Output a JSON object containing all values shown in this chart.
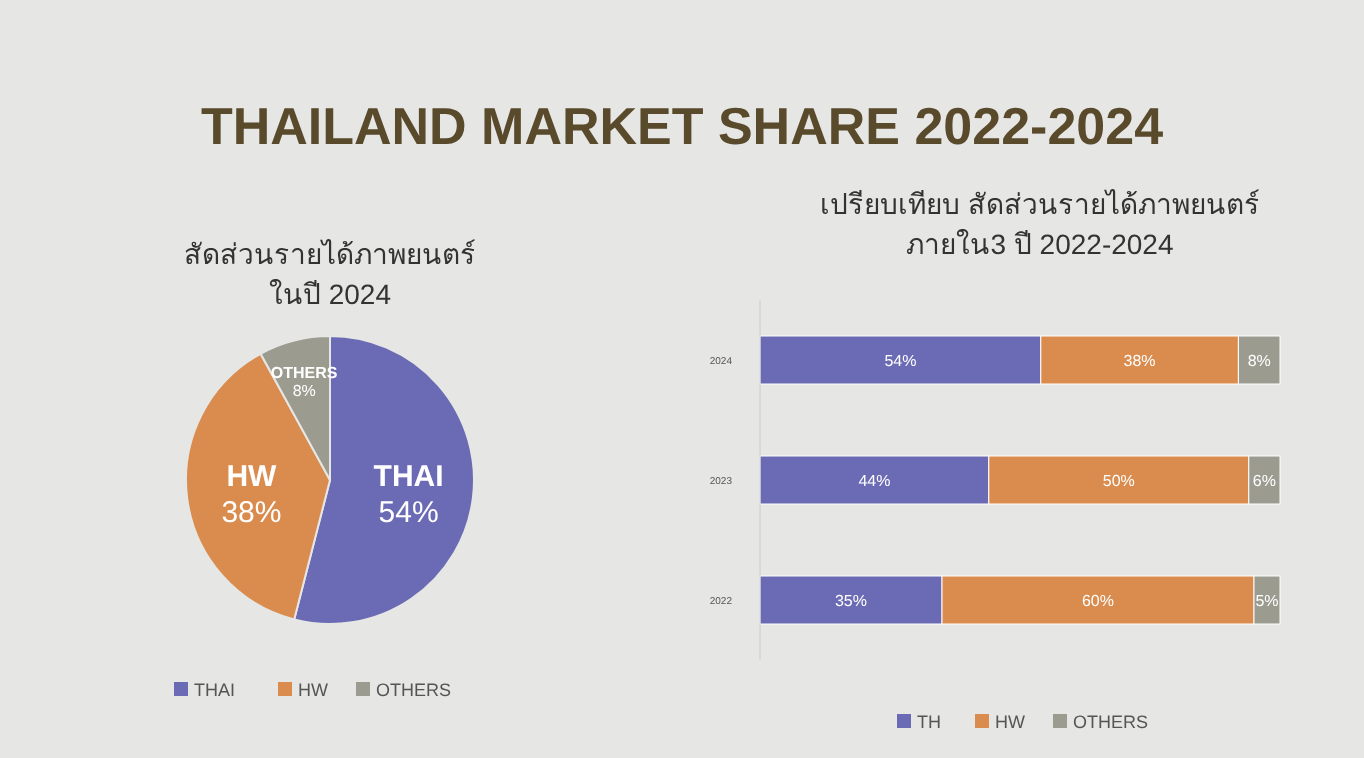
{
  "chart_data": [
    {
      "type": "other",
      "title": "THAILAND MARKET SHARE 2022-2024"
    },
    {
      "type": "pie",
      "title": "สัดส่วนรายได้ภาพยนตร์\nในปี 2024",
      "categories": [
        "THAI",
        "HW",
        "OTHERS"
      ],
      "values": [
        54,
        38,
        8
      ],
      "colors": [
        "#6b6bb5",
        "#d98c4e",
        "#9b9b90"
      ],
      "value_labels": [
        "54%",
        "38%",
        "8%"
      ],
      "legend": "bottom"
    },
    {
      "type": "bar",
      "orientation": "horizontal",
      "stacked": true,
      "title": "เปรียบเทียบ สัดส่วนรายได้ภาพยนตร์\nภายใน3 ปี 2022-2024",
      "categories": [
        "2024",
        "2023",
        "2022"
      ],
      "legend": "bottom",
      "series": [
        {
          "name": "TH",
          "color": "#6b6bb5",
          "values": [
            54,
            44,
            35
          ],
          "value_labels": [
            "54%",
            "44%",
            "35%"
          ]
        },
        {
          "name": "HW",
          "color": "#d98c4e",
          "values": [
            38,
            50,
            60
          ],
          "value_labels": [
            "38%",
            "50%",
            "60%"
          ]
        },
        {
          "name": "OTHERS",
          "color": "#9b9b90",
          "values": [
            8,
            6,
            5
          ],
          "value_labels": [
            "8%",
            "6%",
            "5%"
          ]
        }
      ]
    }
  ]
}
